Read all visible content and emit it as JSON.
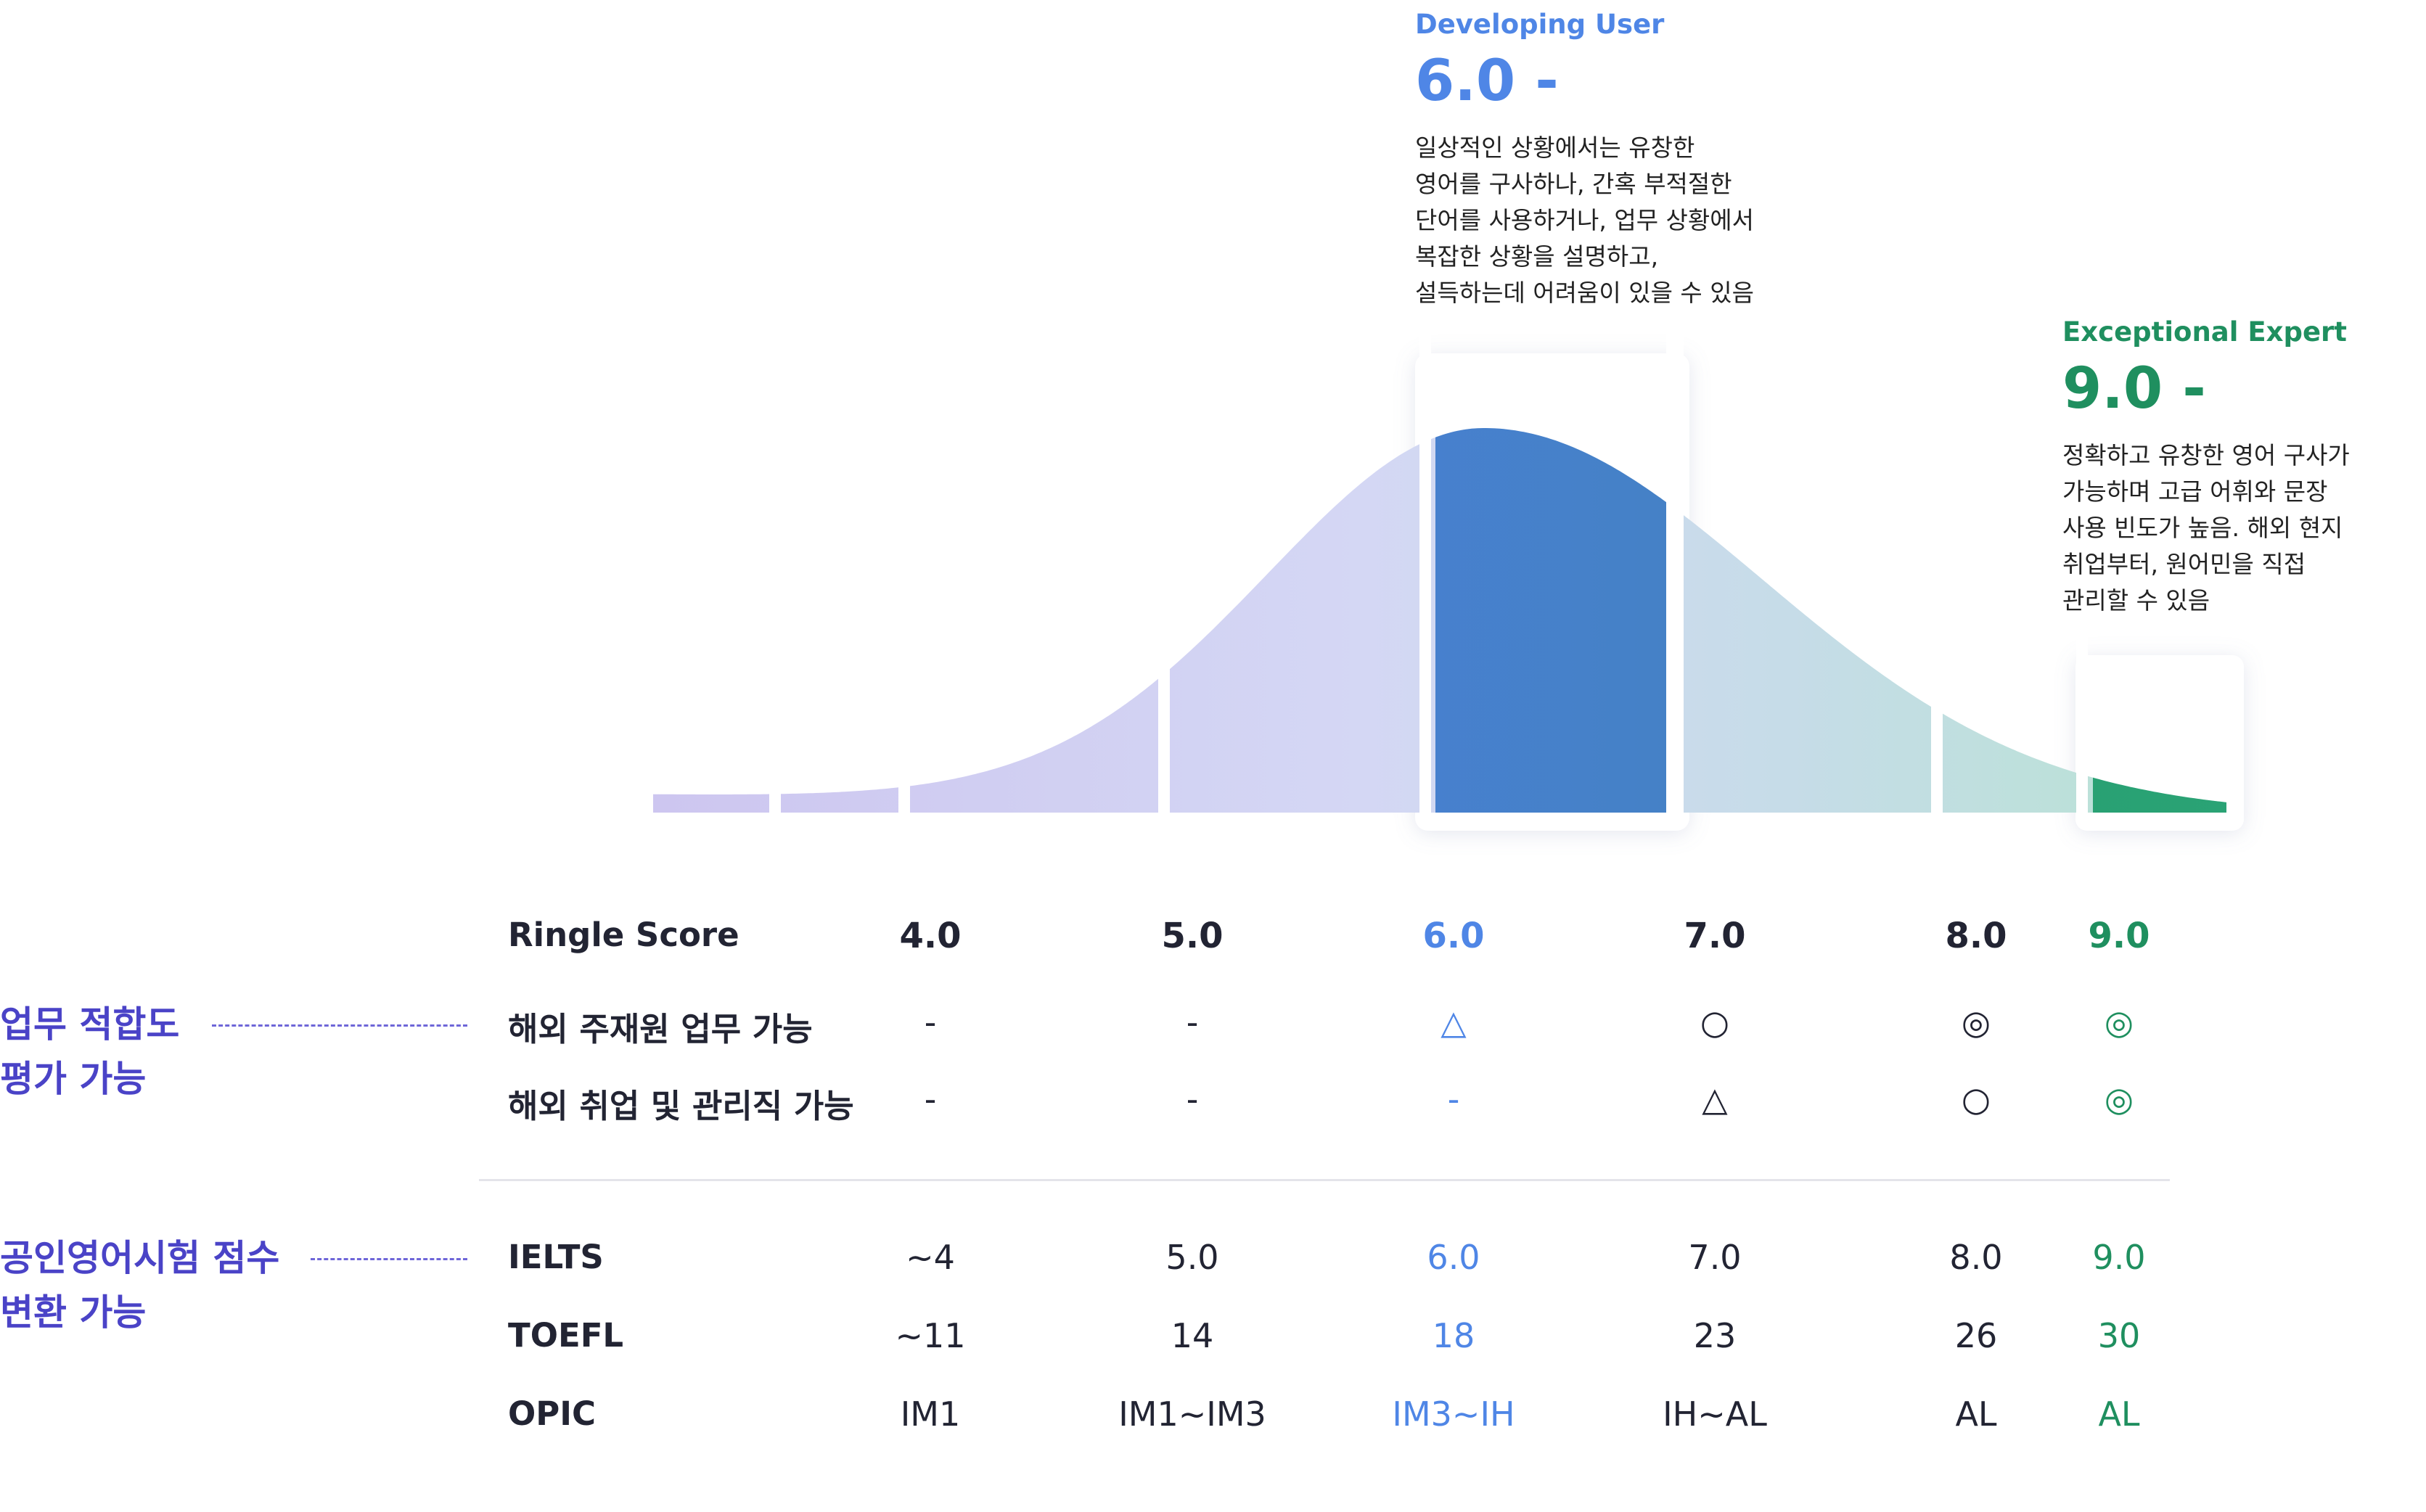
{
  "colors": {
    "blue": "#4f86e6",
    "green": "#1f8f5f",
    "purple": "#4a43c7",
    "dark": "#222433"
  },
  "callouts": {
    "developing": {
      "level": "Developing User",
      "score": "6.0 -",
      "lines": [
        "일상적인 상황에서는 유창한",
        "영어를 구사하나, 간혹 부적절한",
        "단어를 사용하거나, 업무 상황에서",
        "복잡한 상황을 설명하고,",
        "설득하는데 어려움이 있을 수 있음"
      ]
    },
    "exceptional": {
      "level": "Exceptional Expert",
      "score": "9.0 -",
      "lines": [
        "정확하고 유창한 영어 구사가",
        "가능하며 고급 어휘와 문장",
        "사용 빈도가 높음. 해외 현지",
        "취업부터, 원어민을 직접",
        "관리할 수 있음"
      ]
    }
  },
  "side_labels": {
    "job": [
      "업무 적합도",
      "평가 가능"
    ],
    "exam": [
      "공인영어시험 점수",
      "변환 가능"
    ]
  },
  "chart_data": {
    "type": "table",
    "columns": [
      "4.0",
      "5.0",
      "6.0",
      "7.0",
      "8.0",
      "9.0"
    ],
    "highlight": {
      "6.0": "blue",
      "9.0": "green"
    },
    "rows": [
      {
        "label": "Ringle Score",
        "values": [
          "4.0",
          "5.0",
          "6.0",
          "7.0",
          "8.0",
          "9.0"
        ]
      },
      {
        "label": "해외 주재원 업무 가능",
        "values": [
          "-",
          "-",
          "△",
          "○",
          "◎",
          "◎"
        ]
      },
      {
        "label": "해외 취업 및 관리직 가능",
        "values": [
          "-",
          "-",
          "-",
          "△",
          "○",
          "◎"
        ]
      },
      {
        "label": "IELTS",
        "values": [
          "~4",
          "5.0",
          "6.0",
          "7.0",
          "8.0",
          "9.0"
        ]
      },
      {
        "label": "TOEFL",
        "values": [
          "~11",
          "14",
          "18",
          "23",
          "26",
          "30"
        ]
      },
      {
        "label": "OPIC",
        "values": [
          "IM1",
          "IM1~IM3",
          "IM3~IH",
          "IH~AL",
          "AL",
          "AL"
        ]
      }
    ]
  }
}
